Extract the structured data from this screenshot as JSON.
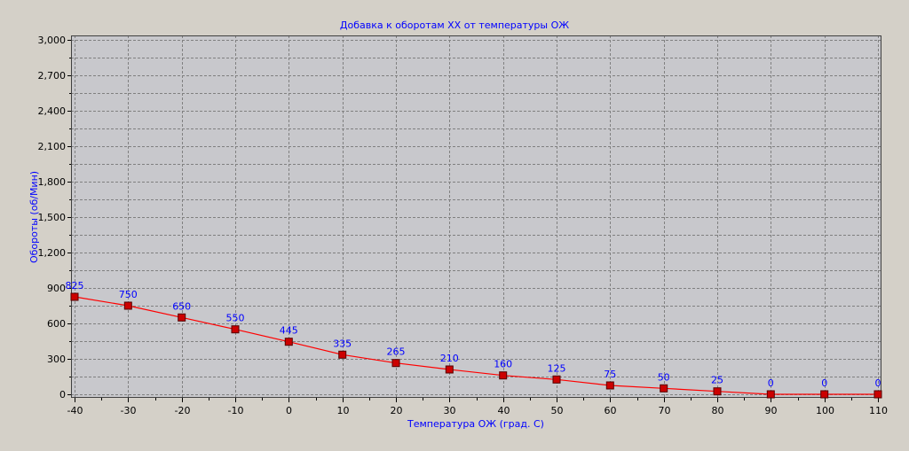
{
  "chart_data": {
    "type": "line",
    "title": "Добавка к оборотам ХХ от температуры ОЖ",
    "xlabel": "Температура ОЖ (град. С)",
    "ylabel": "Обороты (об/Мин)",
    "x": [
      -40,
      -30,
      -20,
      -10,
      0,
      10,
      20,
      30,
      40,
      50,
      60,
      70,
      80,
      90,
      100,
      110
    ],
    "xlim": [
      -40,
      110
    ],
    "ylim": [
      0,
      3000
    ],
    "xticks": [
      "-40",
      "-30",
      "-20",
      "-10",
      "0",
      "10",
      "20",
      "30",
      "40",
      "50",
      "60",
      "70",
      "80",
      "90",
      "100",
      "110"
    ],
    "yticks": [
      "0",
      "300",
      "600",
      "900",
      "1,200",
      "1,500",
      "1,800",
      "2,100",
      "2,400",
      "2,700",
      "3,000"
    ],
    "grid": true,
    "series": [
      {
        "values": [
          825,
          750,
          650,
          550,
          445,
          335,
          265,
          210,
          160,
          125,
          75,
          50,
          25,
          0,
          0,
          0
        ],
        "labels": [
          "825",
          "750",
          "650",
          "550",
          "445",
          "335",
          "265",
          "210",
          "160",
          "125",
          "75",
          "50",
          "25",
          "0",
          "0",
          "0"
        ],
        "color": "#ff0000"
      }
    ],
    "colors": {
      "background": "#d4d0c8",
      "plot_background": "#c8c8cc",
      "text": "#0000ff",
      "axis_text": "#000000",
      "marker_fill": "#cc0000",
      "marker_stroke": "#550000",
      "grid": "#808080"
    }
  }
}
